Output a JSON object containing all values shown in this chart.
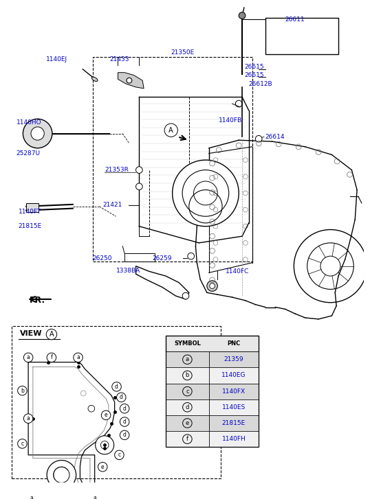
{
  "bg_color": "#ffffff",
  "label_color": "#0000cc",
  "black": "#000000",
  "gray": "#888888",
  "fig_width": 5.38,
  "fig_height": 7.27,
  "dpi": 100,
  "symbols": [
    "a",
    "b",
    "c",
    "d",
    "e",
    "f"
  ],
  "pncs": [
    "21359",
    "1140EG",
    "1140FX",
    "1140ES",
    "21815E",
    "1140FH"
  ]
}
